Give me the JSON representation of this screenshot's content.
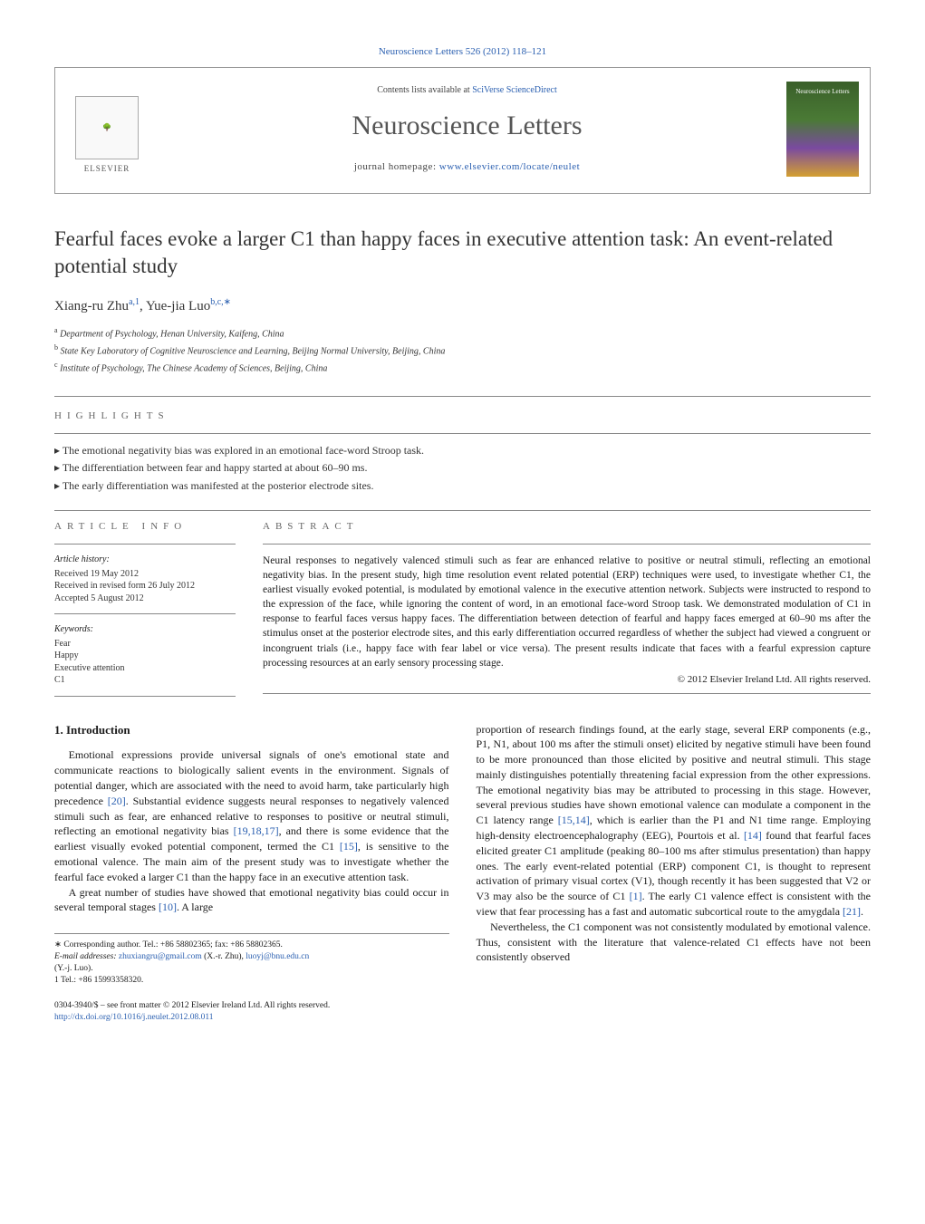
{
  "header": {
    "journal_ref": "Neuroscience Letters 526 (2012) 118–121",
    "contents_prefix": "Contents lists available at ",
    "contents_link": "SciVerse ScienceDirect",
    "journal_title": "Neuroscience Letters",
    "homepage_prefix": "journal homepage: ",
    "homepage_url": "www.elsevier.com/locate/neulet",
    "publisher": "ELSEVIER",
    "cover_text": "Neuroscience Letters"
  },
  "article": {
    "title": "Fearful faces evoke a larger C1 than happy faces in executive attention task: An event-related potential study",
    "authors_html": "Xiang-ru Zhu",
    "author1_sup": "a,1",
    "author_sep": ", ",
    "author2": "Yue-jia Luo",
    "author2_sup": "b,c,∗"
  },
  "affiliations": {
    "a": "Department of Psychology, Henan University, Kaifeng, China",
    "b": "State Key Laboratory of Cognitive Neuroscience and Learning, Beijing Normal University, Beijing, China",
    "c": "Institute of Psychology, The Chinese Academy of Sciences, Beijing, China"
  },
  "highlights": {
    "label": "HIGHLIGHTS",
    "items": [
      "The emotional negativity bias was explored in an emotional face-word Stroop task.",
      "The differentiation between fear and happy started at about 60–90 ms.",
      "The early differentiation was manifested at the posterior electrode sites."
    ]
  },
  "article_info": {
    "label": "ARTICLE INFO",
    "history_title": "Article history:",
    "received": "Received 19 May 2012",
    "revised": "Received in revised form 26 July 2012",
    "accepted": "Accepted 5 August 2012",
    "keywords_title": "Keywords:",
    "keywords": [
      "Fear",
      "Happy",
      "Executive attention",
      "C1"
    ]
  },
  "abstract": {
    "label": "ABSTRACT",
    "text": "Neural responses to negatively valenced stimuli such as fear are enhanced relative to positive or neutral stimuli, reflecting an emotional negativity bias. In the present study, high time resolution event related potential (ERP) techniques were used, to investigate whether C1, the earliest visually evoked potential, is modulated by emotional valence in the executive attention network. Subjects were instructed to respond to the expression of the face, while ignoring the content of word, in an emotional face-word Stroop task. We demonstrated modulation of C1 in response to fearful faces versus happy faces. The differentiation between detection of fearful and happy faces emerged at 60–90 ms after the stimulus onset at the posterior electrode sites, and this early differentiation occurred regardless of whether the subject had viewed a congruent or incongruent trials (i.e., happy face with fear label or vice versa). The present results indicate that faces with a fearful expression capture processing resources at an early sensory processing stage.",
    "copyright": "© 2012 Elsevier Ireland Ltd. All rights reserved."
  },
  "body": {
    "section_num": "1.",
    "section_title": "Introduction",
    "col1_p1": "Emotional expressions provide universal signals of one's emotional state and communicate reactions to biologically salient events in the environment. Signals of potential danger, which are associated with the need to avoid harm, take particularly high precedence [20]. Substantial evidence suggests neural responses to negatively valenced stimuli such as fear, are enhanced relative to responses to positive or neutral stimuli, reflecting an emotional negativity bias [19,18,17], and there is some evidence that the earliest visually evoked potential component, termed the C1 [15], is sensitive to the emotional valence. The main aim of the present study was to investigate whether the fearful face evoked a larger C1 than the happy face in an executive attention task.",
    "col1_p2": "A great number of studies have showed that emotional negativity bias could occur in several temporal stages [10]. A large",
    "col2_p1": "proportion of research findings found, at the early stage, several ERP components (e.g., P1, N1, about 100 ms after the stimuli onset) elicited by negative stimuli have been found to be more pronounced than those elicited by positive and neutral stimuli. This stage mainly distinguishes potentially threatening facial expression from the other expressions. The emotional negativity bias may be attributed to processing in this stage. However, several previous studies have shown emotional valence can modulate a component in the C1 latency range [15,14], which is earlier than the P1 and N1 time range. Employing high-density electroencephalography (EEG), Pourtois et al. [14] found that fearful faces elicited greater C1 amplitude (peaking 80–100 ms after stimulus presentation) than happy ones. The early event-related potential (ERP) component C1, is thought to represent activation of primary visual cortex (V1), though recently it has been suggested that V2 or V3 may also be the source of C1 [1]. The early C1 valence effect is consistent with the view that fear processing has a fast and automatic subcortical route to the amygdala [21].",
    "col2_p2": "Nevertheless, the C1 component was not consistently modulated by emotional valence. Thus, consistent with the literature that valence-related C1 effects have not been consistently observed"
  },
  "footnotes": {
    "corr": "∗ Corresponding author. Tel.: +86 58802365; fax: +86 58802365.",
    "email_label": "E-mail addresses: ",
    "email1": "zhuxiangru@gmail.com",
    "email1_who": " (X.-r. Zhu), ",
    "email2": "luoyj@bnu.edu.cn",
    "email2_who": "(Y.-j. Luo).",
    "note1": "1   Tel.: +86 15993358320."
  },
  "bottom": {
    "line1": "0304-3940/$ – see front matter © 2012 Elsevier Ireland Ltd. All rights reserved.",
    "doi": "http://dx.doi.org/10.1016/j.neulet.2012.08.011"
  }
}
